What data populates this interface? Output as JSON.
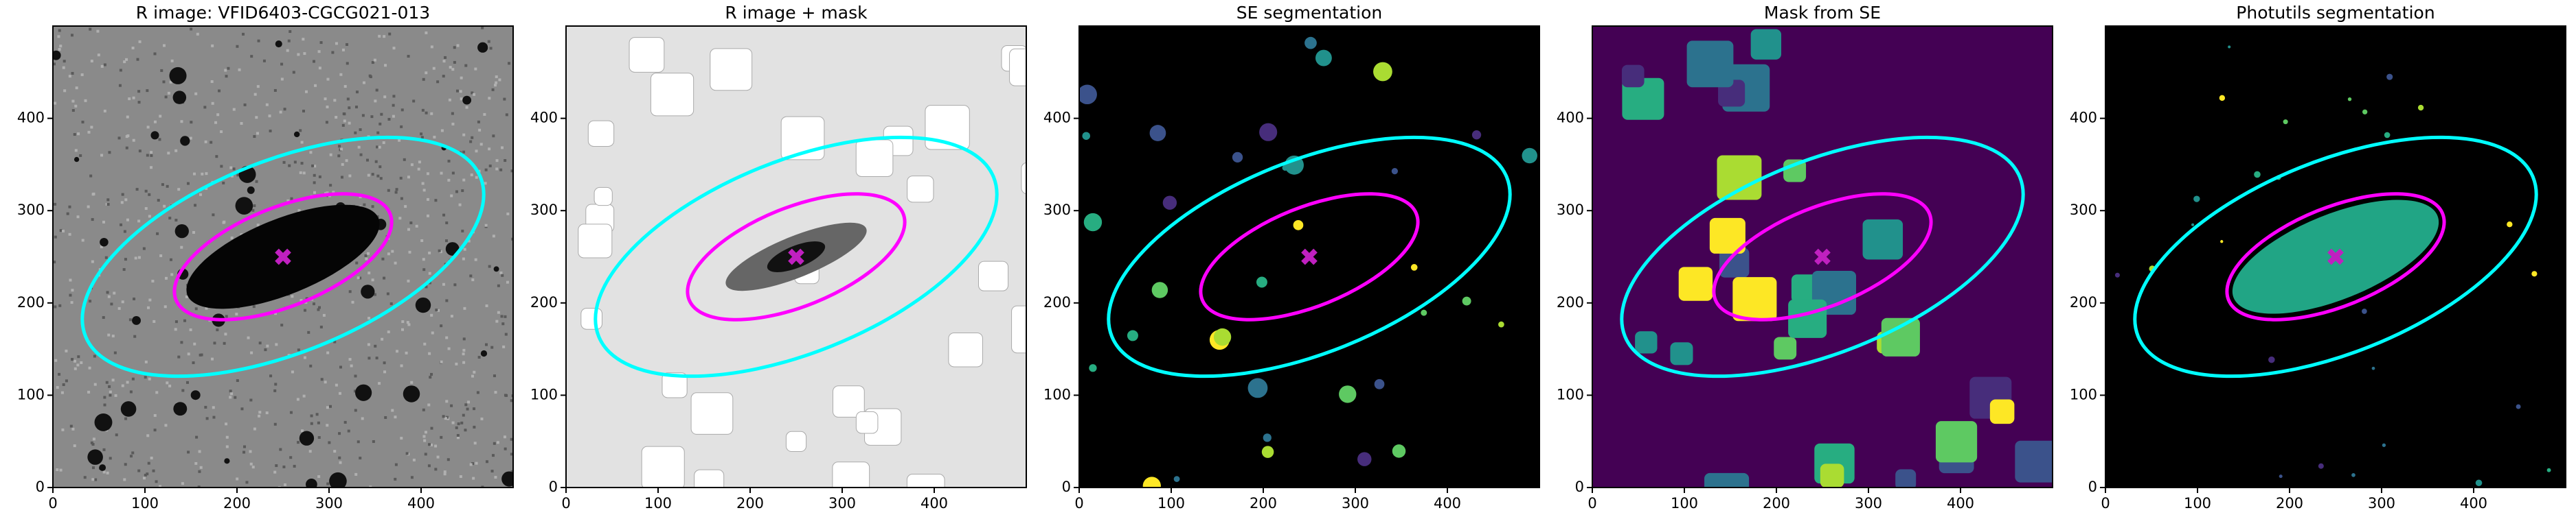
{
  "chart_data": [
    {
      "type": "image",
      "title": "R image: VFID6403-CGCG021-013",
      "background": "#8a8a8a",
      "xlim": [
        0,
        500
      ],
      "ylim": [
        0,
        500
      ],
      "xticks": [
        0,
        100,
        200,
        300,
        400
      ],
      "yticks": [
        0,
        100,
        200,
        300,
        400
      ]
    },
    {
      "type": "image",
      "title": "R image + mask",
      "background": "#e2e2e2",
      "xlim": [
        0,
        500
      ],
      "ylim": [
        0,
        500
      ],
      "xticks": [
        0,
        100,
        200,
        300,
        400
      ],
      "yticks": [
        0,
        100,
        200,
        300,
        400
      ]
    },
    {
      "type": "image",
      "title": "SE segmentation",
      "background": "#000000",
      "xlim": [
        0,
        500
      ],
      "ylim": [
        0,
        500
      ],
      "xticks": [
        0,
        100,
        200,
        300,
        400
      ],
      "yticks": [
        0,
        100,
        200,
        300,
        400
      ]
    },
    {
      "type": "image",
      "title": "Mask from SE",
      "background": "#440154",
      "xlim": [
        0,
        500
      ],
      "ylim": [
        0,
        500
      ],
      "xticks": [
        0,
        100,
        200,
        300,
        400
      ],
      "yticks": [
        0,
        100,
        200,
        300,
        400
      ]
    },
    {
      "type": "image",
      "title": "Photutils segmentation",
      "background": "#000000",
      "xlim": [
        0,
        500
      ],
      "ylim": [
        0,
        500
      ],
      "xticks": [
        0,
        100,
        200,
        300,
        400
      ],
      "yticks": [
        0,
        100,
        200,
        300,
        400
      ]
    }
  ]
}
